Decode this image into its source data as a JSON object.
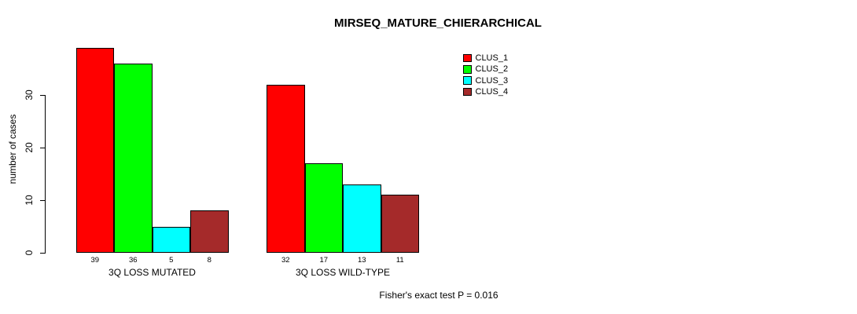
{
  "chart_data": {
    "type": "bar",
    "title": "MIRSEQ_MATURE_CHIERARCHICAL",
    "xlabel": "",
    "ylabel": "number of cases",
    "categories": [
      "3Q LOSS MUTATED",
      "3Q LOSS WILD-TYPE"
    ],
    "series": [
      {
        "name": "CLUS_1",
        "color": "#FF0000",
        "values": [
          39,
          32
        ]
      },
      {
        "name": "CLUS_2",
        "color": "#00FF00",
        "values": [
          36,
          17
        ]
      },
      {
        "name": "CLUS_3",
        "color": "#00FFFF",
        "values": [
          5,
          13
        ]
      },
      {
        "name": "CLUS_4",
        "color": "#A52A2A",
        "values": [
          8,
          11
        ]
      }
    ],
    "yticks": [
      0,
      10,
      20,
      30
    ],
    "ylim": [
      0,
      39
    ],
    "grid": false,
    "bar_value_labels_shown": true,
    "legend_position": "top-right",
    "annotation": "Fisher's exact test P = 0.016",
    "axis_color": "#000000",
    "bar_border_color": "#000000"
  }
}
